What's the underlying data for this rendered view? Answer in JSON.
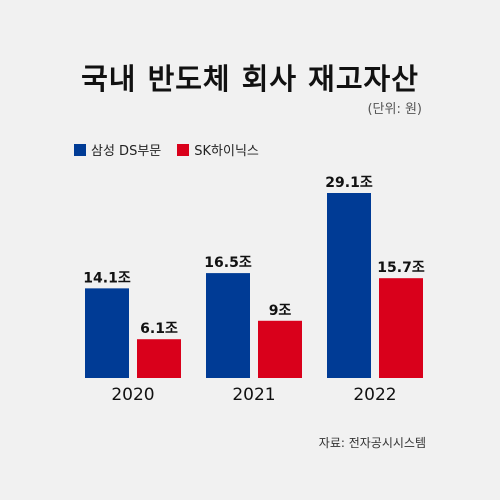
{
  "chart_data": {
    "type": "bar",
    "title": "국내 반도체 회사 재고자산",
    "unit_label": "(단위: 원)",
    "source": "자료: 전자공시시스템",
    "categories": [
      "2020",
      "2021",
      "2022"
    ],
    "series": [
      {
        "name": "삼성 DS부문",
        "color": "#003b95",
        "values": [
          14.1,
          16.5,
          29.1
        ],
        "labels": [
          "14.1조",
          "16.5조",
          "29.1조"
        ]
      },
      {
        "name": "SK하이닉스",
        "color": "#d9001b",
        "values": [
          6.1,
          9,
          15.7
        ],
        "labels": [
          "6.1조",
          "9조",
          "15.7조"
        ]
      }
    ],
    "ylim": [
      0,
      33
    ],
    "grid": false,
    "legend_position": "top-left"
  }
}
